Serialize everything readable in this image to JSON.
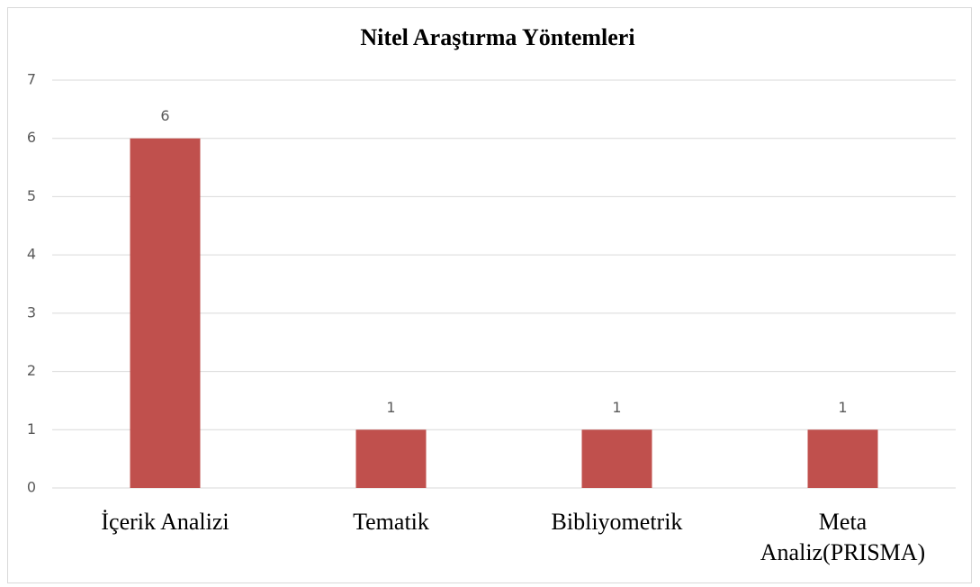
{
  "chart_data": {
    "type": "bar",
    "title": "Nitel Araştırma Yöntemleri",
    "categories": [
      "İçerik Analizi",
      "Tematik",
      "Bibliyometrik",
      "Meta Analiz(PRISMA)"
    ],
    "values": [
      6,
      1,
      1,
      1
    ],
    "color": "#c0504d",
    "ylim": [
      0,
      7
    ],
    "yticks": [
      0,
      1,
      2,
      3,
      4,
      5,
      6,
      7
    ],
    "grid": true
  }
}
